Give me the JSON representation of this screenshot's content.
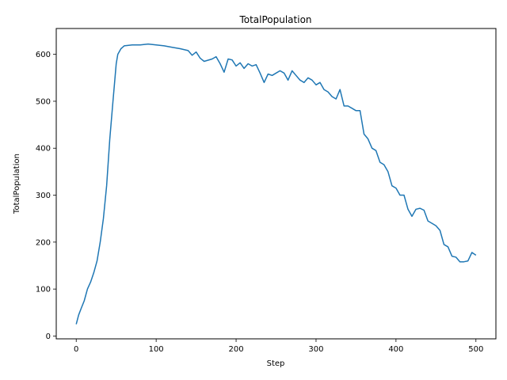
{
  "chart_data": {
    "type": "line",
    "title": "TotalPopulation",
    "xlabel": "Step",
    "ylabel": "TotalPopulation",
    "xlim": [
      -25,
      525
    ],
    "ylim": [
      -6,
      655
    ],
    "xticks": [
      0,
      100,
      200,
      300,
      400,
      500
    ],
    "yticks": [
      0,
      100,
      200,
      300,
      400,
      500,
      600
    ],
    "grid": false,
    "line_color": "#1f77b4",
    "series": [
      {
        "x": [
          0,
          3,
          6,
          10,
          14,
          18,
          22,
          26,
          30,
          34,
          38,
          42,
          46,
          50,
          52,
          56,
          58,
          60,
          70,
          80,
          90,
          100,
          110,
          120,
          130,
          140,
          145,
          150,
          155,
          160,
          170,
          175,
          180,
          185,
          190,
          195,
          200,
          205,
          210,
          215,
          220,
          225,
          230,
          235,
          240,
          245,
          250,
          255,
          260,
          265,
          270,
          275,
          280,
          285,
          290,
          295,
          300,
          305,
          310,
          315,
          320,
          325,
          330,
          335,
          340,
          345,
          350,
          355,
          360,
          365,
          370,
          375,
          380,
          385,
          390,
          395,
          400,
          405,
          410,
          415,
          420,
          425,
          430,
          435,
          440,
          445,
          450,
          455,
          460,
          465,
          470,
          475,
          480,
          485,
          490,
          495,
          500
        ],
        "y": [
          25,
          45,
          58,
          75,
          100,
          115,
          135,
          160,
          200,
          250,
          320,
          420,
          500,
          580,
          600,
          612,
          615,
          618,
          620,
          620,
          622,
          620,
          618,
          615,
          612,
          608,
          598,
          605,
          592,
          585,
          590,
          595,
          580,
          562,
          590,
          588,
          575,
          582,
          570,
          580,
          575,
          578,
          560,
          540,
          558,
          555,
          560,
          565,
          560,
          545,
          565,
          555,
          545,
          540,
          550,
          545,
          535,
          540,
          525,
          520,
          510,
          505,
          525,
          490,
          490,
          485,
          480,
          480,
          430,
          420,
          400,
          395,
          370,
          365,
          350,
          320,
          315,
          300,
          300,
          270,
          255,
          270,
          272,
          268,
          245,
          240,
          235,
          225,
          195,
          190,
          170,
          168,
          158,
          158,
          160,
          178,
          172
        ]
      }
    ]
  }
}
